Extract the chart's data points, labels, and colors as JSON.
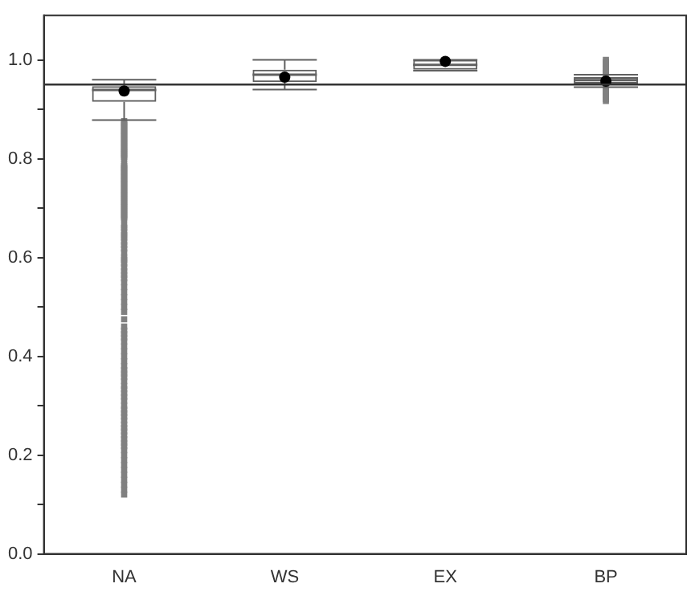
{
  "chart_data": {
    "type": "box",
    "categories": [
      "NA",
      "WS",
      "EX",
      "BP"
    ],
    "color": "#606060",
    "marker": "circle",
    "grid": false,
    "legend": false,
    "ylim": [
      0,
      1.09
    ],
    "yticks": [
      {
        "value": 0,
        "label": "0.0"
      },
      {
        "value": 0.1,
        "label": null
      },
      {
        "value": 0.2,
        "label": "0.2"
      },
      {
        "value": 0.3,
        "label": null
      },
      {
        "value": 0.4,
        "label": "0.4"
      },
      {
        "value": 0.5,
        "label": null
      },
      {
        "value": 0.6,
        "label": "0.6"
      },
      {
        "value": 0.7,
        "label": null
      },
      {
        "value": 0.8,
        "label": "0.8"
      },
      {
        "value": 0.9,
        "label": null
      },
      {
        "value": 1,
        "label": "1.0"
      }
    ],
    "ref_lines": [
      {
        "axis": "y",
        "value": 0.95,
        "color": "#333333"
      }
    ],
    "boxes": [
      {
        "low": 0.878,
        "q1": 0.915,
        "median": 0.939,
        "q3": 0.947,
        "high": 0.96,
        "mean": 0.937,
        "outliers": [
          0.876,
          0.872,
          0.868,
          0.864,
          0.86,
          0.856,
          0.852,
          0.848,
          0.844,
          0.84,
          0.836,
          0.832,
          0.828,
          0.824,
          0.82,
          0.816,
          0.812,
          0.808,
          0.804,
          0.8,
          0.789,
          0.785,
          0.781,
          0.777,
          0.773,
          0.769,
          0.765,
          0.761,
          0.757,
          0.753,
          0.749,
          0.745,
          0.741,
          0.737,
          0.733,
          0.729,
          0.725,
          0.721,
          0.717,
          0.713,
          0.709,
          0.705,
          0.701,
          0.697,
          0.693,
          0.689,
          0.685,
          0.681,
          0.677,
          0.665,
          0.66,
          0.652,
          0.645,
          0.64,
          0.632,
          0.625,
          0.618,
          0.61,
          0.6,
          0.595,
          0.588,
          0.58,
          0.572,
          0.565,
          0.558,
          0.55,
          0.54,
          0.53,
          0.52,
          0.51,
          0.5,
          0.49,
          0.475,
          0.46,
          0.452,
          0.445,
          0.438,
          0.43,
          0.42,
          0.41,
          0.4,
          0.39,
          0.38,
          0.372,
          0.365,
          0.358,
          0.35,
          0.34,
          0.333,
          0.325,
          0.318,
          0.31,
          0.3,
          0.292,
          0.285,
          0.278,
          0.27,
          0.262,
          0.255,
          0.248,
          0.24,
          0.232,
          0.225,
          0.218,
          0.21,
          0.2,
          0.19,
          0.18,
          0.17,
          0.16,
          0.15,
          0.14,
          0.13,
          0.12
        ]
      },
      {
        "low": 0.94,
        "q1": 0.955,
        "median": 0.97,
        "q3": 0.98,
        "high": 1.0,
        "mean": 0.965
      },
      {
        "low": 0.978,
        "q1": 0.98,
        "median": 0.99,
        "q3": 1.0,
        "high": 1.0,
        "mean": 0.997
      },
      {
        "low": 0.945,
        "q1": 0.952,
        "median": 0.959,
        "q3": 0.965,
        "high": 0.97,
        "mean": 0.957,
        "outliers": [
          1.0,
          0.996,
          0.992,
          0.988,
          0.984,
          0.98,
          0.976,
          0.972,
          0.941,
          0.937,
          0.933,
          0.929,
          0.925,
          0.921,
          0.917
        ]
      }
    ]
  }
}
